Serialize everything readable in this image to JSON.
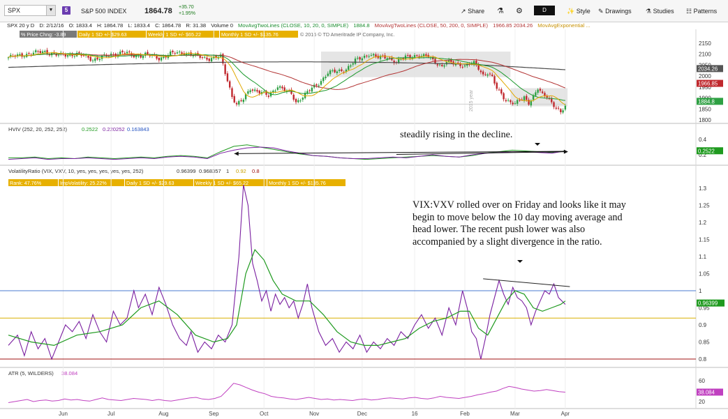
{
  "toolbar": {
    "symbol": "SPX",
    "symbol_badge": "5",
    "symbol_name": "S&P 500 INDEX",
    "last_price": "1864.78",
    "net_change": "+35.70",
    "pct_change": "+1.95%",
    "share_label": "Share",
    "aggregation": "D",
    "style_label": "Style",
    "drawings_label": "Drawings",
    "studies_label": "Studies",
    "patterns_label": "Patterns"
  },
  "info_line": {
    "chart_id": "SPX 20 y D",
    "date": "D: 2/12/16",
    "open": "O: 1833.4",
    "high": "H: 1864.78",
    "low": "L: 1833.4",
    "close": "C: 1864.78",
    "range": "R: 31.38",
    "volume": "Volume  0",
    "ma1_label": "MovAvgTwoLines (CLOSE, 10, 20, 0, SIMPLE)",
    "ma1_value": "1884.8",
    "ma2_label": "MovAvgTwoLines (CLOSE, 50, 200, 0, SIMPLE)",
    "ma2_values": "1966.85  2034.26",
    "ma3_label": "MovAvgExponential ..."
  },
  "price_labels": {
    "pct_chng": "% Price Chng: -3.89",
    "daily": "Daily 1 SD +/- $29.63",
    "weekly": "Weekly 1 SD +/- $65.22",
    "monthly": "Monthly 1 SD +/- $135.76",
    "copyright": "© 2016 © TD Ameritrade IP Company, Inc.",
    "year_marker": "2015 year"
  },
  "hviv_header": {
    "name": "HVIV (252, 20, 252, 252)",
    "v1": "0.2522",
    "v2": "0.220252",
    "v3": "0.163843"
  },
  "vr_header": {
    "name": "VolatilityRatio (VIX, VXV, 10, yes, yes, yes, yes, yes, 252)",
    "v1": "0.96399",
    "v2": "0.968357",
    "v3": "1",
    "v4": "0.92",
    "v5": "0.8"
  },
  "vr_labels": {
    "rank": "Rank: 47.76%",
    "impvol": "ImpVolatility: 25.22%",
    "daily": "Daily 1 SD +/- $29.63",
    "weekly": "Weekly 1 SD +/- $65.22",
    "monthly": "Monthly 1 SD +/- $135.76"
  },
  "atr_header": {
    "name": "ATR (5, WILDERS)",
    "v1": "38.084"
  },
  "annotations": {
    "hviv_note": "steadily rising in the decline.",
    "vr_note": "VIX:VXV rolled over on Friday and looks like it may begin to move below the 10 day moving average and head lower.  The recent push lower was also accompanied by a slight divergence in the ratio."
  },
  "colors": {
    "up_candle": "#2ea043",
    "down_candle": "#c0282d",
    "ma10": "#e0a800",
    "ma20": "#1d9a2e",
    "ma50": "#b33434",
    "ma200": "#4a4a4a",
    "ratio": "#7a1fa0",
    "ratio_ma": "#1f9a1f",
    "hv": "#1f9a1f",
    "iv": "#7a1fa0",
    "atr": "#c040c0"
  },
  "chart_data": [
    {
      "type": "candlestick",
      "title": "SPX 20 y D",
      "x_months": [
        "Jun",
        "Jul",
        "Aug",
        "Sep",
        "Oct",
        "Nov",
        "Dec",
        "16",
        "Feb",
        "Mar",
        "Apr"
      ],
      "y_ticks": [
        2150,
        2100,
        2050,
        2000,
        1950,
        1900,
        1850,
        1800
      ],
      "ylim": [
        1790,
        2160
      ],
      "close_path": [
        [
          0,
          2085
        ],
        [
          8,
          2100
        ],
        [
          16,
          2112
        ],
        [
          22,
          2094
        ],
        [
          30,
          2101
        ],
        [
          37,
          2076
        ],
        [
          44,
          2094
        ],
        [
          50,
          2110
        ],
        [
          55,
          2091
        ],
        [
          60,
          2099
        ],
        [
          66,
          2081
        ],
        [
          71,
          2102
        ],
        [
          77,
          2108
        ],
        [
          82,
          2092
        ],
        [
          88,
          2080
        ],
        [
          93,
          2088
        ],
        [
          98,
          1910
        ],
        [
          100,
          1868
        ],
        [
          103,
          1893
        ],
        [
          106,
          1945
        ],
        [
          110,
          1927
        ],
        [
          114,
          1909
        ],
        [
          118,
          1956
        ],
        [
          121,
          1935
        ],
        [
          124,
          1919
        ],
        [
          126,
          1881
        ],
        [
          128,
          1898
        ],
        [
          132,
          1935
        ],
        [
          136,
          1968
        ],
        [
          140,
          2015
        ],
        [
          144,
          2021
        ],
        [
          148,
          2032
        ],
        [
          152,
          2070
        ],
        [
          156,
          2090
        ],
        [
          158,
          2102
        ],
        [
          162,
          2083
        ],
        [
          166,
          2089
        ],
        [
          170,
          2061
        ],
        [
          174,
          2089
        ],
        [
          178,
          2094
        ],
        [
          182,
          2088
        ],
        [
          184,
          2092
        ],
        [
          188,
          2058
        ],
        [
          190,
          2040
        ],
        [
          192,
          2063
        ],
        [
          196,
          2062
        ],
        [
          200,
          2043
        ],
        [
          204,
          2061
        ],
        [
          206,
          2040
        ],
        [
          208,
          2005
        ],
        [
          210,
          2012
        ],
        [
          212,
          1990
        ],
        [
          214,
          1945
        ],
        [
          216,
          1922
        ],
        [
          218,
          1890
        ],
        [
          220,
          1880
        ],
        [
          222,
          1869
        ],
        [
          224,
          1893
        ],
        [
          226,
          1906
        ],
        [
          228,
          1880
        ],
        [
          230,
          1903
        ],
        [
          232,
          1940
        ],
        [
          234,
          1915
        ],
        [
          236,
          1912
        ],
        [
          238,
          1880
        ],
        [
          240,
          1852
        ],
        [
          242,
          1829
        ],
        [
          244,
          1864.78
        ]
      ],
      "ma10": {
        "name": "MovAvgTwoLines (CLOSE, 10, 20, 0, SIMPLE)",
        "last": 1884.8
      },
      "ma50": {
        "name": "MovAvgTwoLines (CLOSE, 50, 200, 0, SIMPLE)",
        "last": 1966.85
      },
      "ma200": {
        "last": 2034.26
      }
    },
    {
      "type": "line",
      "title": "HVIV (252, 20, 252, 252)",
      "y_ticks": [
        0.4,
        0.2
      ],
      "last_value": 0.2522,
      "series": [
        {
          "name": "HV",
          "values": [
            0.16,
            0.16,
            0.17,
            0.15,
            0.16,
            0.15,
            0.17,
            0.16,
            0.15,
            0.16,
            0.17,
            0.16,
            0.18,
            0.19,
            0.18,
            0.16,
            0.24,
            0.31,
            0.33,
            0.3,
            0.27,
            0.24,
            0.21,
            0.19,
            0.18,
            0.16,
            0.15,
            0.14,
            0.15,
            0.16,
            0.17,
            0.18,
            0.19,
            0.18,
            0.17,
            0.19,
            0.22,
            0.24,
            0.26,
            0.25,
            0.24,
            0.23,
            0.25
          ]
        },
        {
          "name": "IV",
          "values": [
            0.14,
            0.15,
            0.16,
            0.14,
            0.15,
            0.15,
            0.16,
            0.15,
            0.14,
            0.15,
            0.16,
            0.15,
            0.17,
            0.18,
            0.17,
            0.15,
            0.22,
            0.26,
            0.29,
            0.3,
            0.29,
            0.25,
            0.22,
            0.19,
            0.18,
            0.16,
            0.15,
            0.15,
            0.16,
            0.17,
            0.16,
            0.18,
            0.2,
            0.18,
            0.17,
            0.2,
            0.22,
            0.23,
            0.24,
            0.24,
            0.23,
            0.22,
            0.25
          ]
        }
      ]
    },
    {
      "type": "line",
      "title": "VolatilityRatio (VIX, VXV, 10, yes, yes, yes, yes, yes, 252)",
      "y_ticks": [
        1.3,
        1.25,
        1.2,
        1.15,
        1.1,
        1.05,
        1.0,
        0.95,
        0.9,
        0.85,
        0.8
      ],
      "ylim": [
        0.775,
        1.33
      ],
      "reference_lines": [
        1.0,
        0.92,
        0.8
      ],
      "last_value": 0.96399,
      "series": [
        {
          "name": "VIX:VXV ratio",
          "points": [
            [
              0,
              0.84
            ],
            [
              4,
              0.87
            ],
            [
              7,
              0.81
            ],
            [
              10,
              0.88
            ],
            [
              13,
              0.83
            ],
            [
              16,
              0.86
            ],
            [
              19,
              0.8
            ],
            [
              22,
              0.85
            ],
            [
              25,
              0.9
            ],
            [
              28,
              0.88
            ],
            [
              31,
              0.91
            ],
            [
              34,
              0.86
            ],
            [
              37,
              0.93
            ],
            [
              40,
              0.88
            ],
            [
              43,
              0.85
            ],
            [
              46,
              0.94
            ],
            [
              49,
              0.9
            ],
            [
              52,
              0.92
            ],
            [
              55,
              1.0
            ],
            [
              57,
              0.95
            ],
            [
              60,
              0.99
            ],
            [
              63,
              0.93
            ],
            [
              66,
              1.01
            ],
            [
              69,
              0.96
            ],
            [
              72,
              0.9
            ],
            [
              75,
              0.86
            ],
            [
              78,
              0.84
            ],
            [
              80,
              0.88
            ],
            [
              83,
              0.82
            ],
            [
              86,
              0.85
            ],
            [
              89,
              0.83
            ],
            [
              92,
              0.87
            ],
            [
              95,
              0.85
            ],
            [
              98,
              0.9
            ],
            [
              101,
              1.1
            ],
            [
              103,
              1.31
            ],
            [
              105,
              1.25
            ],
            [
              107,
              1.08
            ],
            [
              109,
              1.03
            ],
            [
              111,
              0.97
            ],
            [
              113,
              1.0
            ],
            [
              115,
              0.94
            ],
            [
              117,
              0.99
            ],
            [
              119,
              0.96
            ],
            [
              121,
              0.98
            ],
            [
              123,
              0.95
            ],
            [
              125,
              0.97
            ],
            [
              127,
              0.92
            ],
            [
              129,
              0.96
            ],
            [
              131,
              1.02
            ],
            [
              133,
              0.95
            ],
            [
              136,
              0.88
            ],
            [
              139,
              0.84
            ],
            [
              142,
              0.86
            ],
            [
              145,
              0.82
            ],
            [
              148,
              0.85
            ],
            [
              151,
              0.83
            ],
            [
              154,
              0.87
            ],
            [
              157,
              0.82
            ],
            [
              160,
              0.85
            ],
            [
              163,
              0.83
            ],
            [
              166,
              0.86
            ],
            [
              169,
              0.84
            ],
            [
              172,
              0.88
            ],
            [
              175,
              0.86
            ],
            [
              178,
              0.9
            ],
            [
              181,
              0.93
            ],
            [
              184,
              0.89
            ],
            [
              187,
              0.92
            ],
            [
              190,
              0.87
            ],
            [
              193,
              0.95
            ],
            [
              196,
              0.9
            ],
            [
              199,
              1.0
            ],
            [
              201,
              0.95
            ],
            [
              203,
              0.88
            ],
            [
              205,
              0.86
            ],
            [
              207,
              0.8
            ],
            [
              209,
              0.86
            ],
            [
              211,
              0.93
            ],
            [
              213,
              0.98
            ],
            [
              215,
              1.03
            ],
            [
              217,
              0.99
            ],
            [
              219,
              0.96
            ],
            [
              221,
              1.01
            ],
            [
              223,
              0.98
            ],
            [
              225,
              0.97
            ],
            [
              227,
              0.95
            ],
            [
              229,
              0.9
            ],
            [
              231,
              0.94
            ],
            [
              233,
              0.97
            ],
            [
              235,
              1.0
            ],
            [
              237,
              0.99
            ],
            [
              239,
              1.02
            ],
            [
              241,
              0.98
            ],
            [
              244,
              0.96
            ]
          ]
        },
        {
          "name": "10 day MA",
          "points": [
            [
              0,
              0.87
            ],
            [
              10,
              0.85
            ],
            [
              20,
              0.84
            ],
            [
              30,
              0.87
            ],
            [
              40,
              0.88
            ],
            [
              50,
              0.9
            ],
            [
              58,
              0.95
            ],
            [
              66,
              0.97
            ],
            [
              74,
              0.93
            ],
            [
              82,
              0.87
            ],
            [
              90,
              0.85
            ],
            [
              96,
              0.86
            ],
            [
              100,
              0.9
            ],
            [
              104,
              1.05
            ],
            [
              108,
              1.12
            ],
            [
              112,
              1.09
            ],
            [
              116,
              1.03
            ],
            [
              120,
              0.99
            ],
            [
              126,
              0.97
            ],
            [
              132,
              0.97
            ],
            [
              138,
              0.93
            ],
            [
              144,
              0.88
            ],
            [
              150,
              0.85
            ],
            [
              156,
              0.84
            ],
            [
              162,
              0.84
            ],
            [
              168,
              0.85
            ],
            [
              174,
              0.86
            ],
            [
              180,
              0.89
            ],
            [
              186,
              0.91
            ],
            [
              192,
              0.92
            ],
            [
              198,
              0.94
            ],
            [
              202,
              0.94
            ],
            [
              206,
              0.89
            ],
            [
              210,
              0.87
            ],
            [
              214,
              0.92
            ],
            [
              218,
              0.97
            ],
            [
              222,
              1.0
            ],
            [
              226,
              0.99
            ],
            [
              230,
              0.95
            ],
            [
              234,
              0.94
            ],
            [
              238,
              0.95
            ],
            [
              242,
              0.96
            ],
            [
              244,
              0.97
            ]
          ]
        }
      ]
    },
    {
      "type": "line",
      "title": "ATR (5, WILDERS)",
      "y_ticks": [
        60,
        40,
        20
      ],
      "ylim": [
        15,
        65
      ],
      "last_value": 38.084,
      "series": [
        {
          "name": "ATR",
          "values": [
            18,
            20,
            22,
            24,
            20,
            22,
            23,
            21,
            22,
            25,
            23,
            24,
            22,
            21,
            24,
            27,
            24,
            23,
            22,
            24,
            26,
            25,
            24,
            22,
            24,
            22,
            21,
            23,
            25,
            27,
            28,
            25,
            24,
            26,
            30,
            42,
            55,
            52,
            47,
            42,
            38,
            35,
            30,
            28,
            27,
            25,
            24,
            26,
            28,
            26,
            24,
            25,
            23,
            24,
            23,
            22,
            24,
            25,
            23,
            24,
            26,
            27,
            26,
            25,
            27,
            28,
            26,
            25,
            27,
            30,
            28,
            27,
            26,
            28,
            30,
            33,
            35,
            38,
            40,
            45,
            49,
            47,
            44,
            42,
            40,
            41,
            43,
            41,
            39,
            38
          ]
        }
      ]
    }
  ]
}
